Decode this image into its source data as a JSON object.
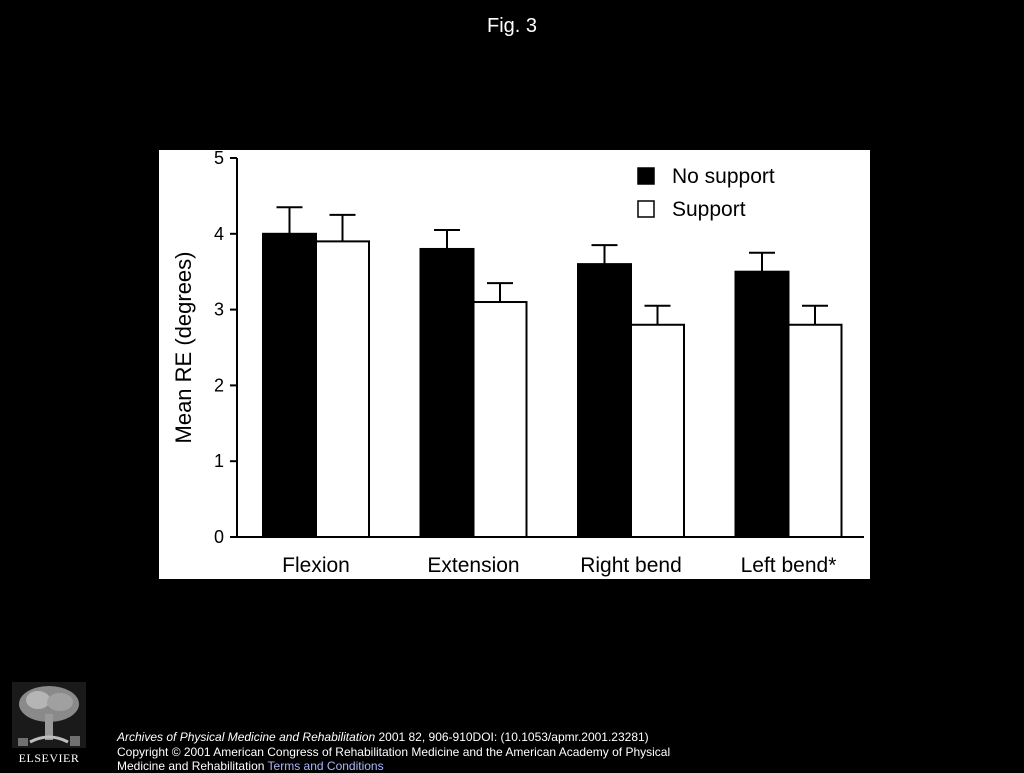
{
  "slide": {
    "title": "Fig. 3"
  },
  "chart_data": {
    "type": "bar",
    "title": "",
    "xlabel": "",
    "ylabel": "Mean RE (degrees)",
    "ylim": [
      0,
      5
    ],
    "yticks": [
      0,
      1,
      2,
      3,
      4,
      5
    ],
    "categories": [
      "Flexion",
      "Extension",
      "Right bend",
      "Left bend*"
    ],
    "series": [
      {
        "name": "No support",
        "values": [
          4.0,
          3.8,
          3.6,
          3.5
        ],
        "errors": [
          0.35,
          0.25,
          0.25,
          0.25
        ],
        "color": "#000000"
      },
      {
        "name": "Support",
        "values": [
          3.9,
          3.1,
          2.8,
          2.8
        ],
        "errors": [
          0.35,
          0.25,
          0.25,
          0.25
        ],
        "color": "#ffffff"
      }
    ],
    "legend_position": "top-right",
    "grid": false
  },
  "footer": {
    "journal": "Archives of Physical Medicine and Rehabilitation",
    "citation": " 2001 82, 906-910DOI: (10.1053/apmr.2001.23281)",
    "copyright": "Copyright © 2001 American Congress of Rehabilitation Medicine and the American Academy of Physical Medicine and Rehabilitation ",
    "terms_link": "Terms and Conditions"
  },
  "logo": {
    "icon": "elsevier-tree-icon",
    "wordmark": "ELSEVIER"
  }
}
